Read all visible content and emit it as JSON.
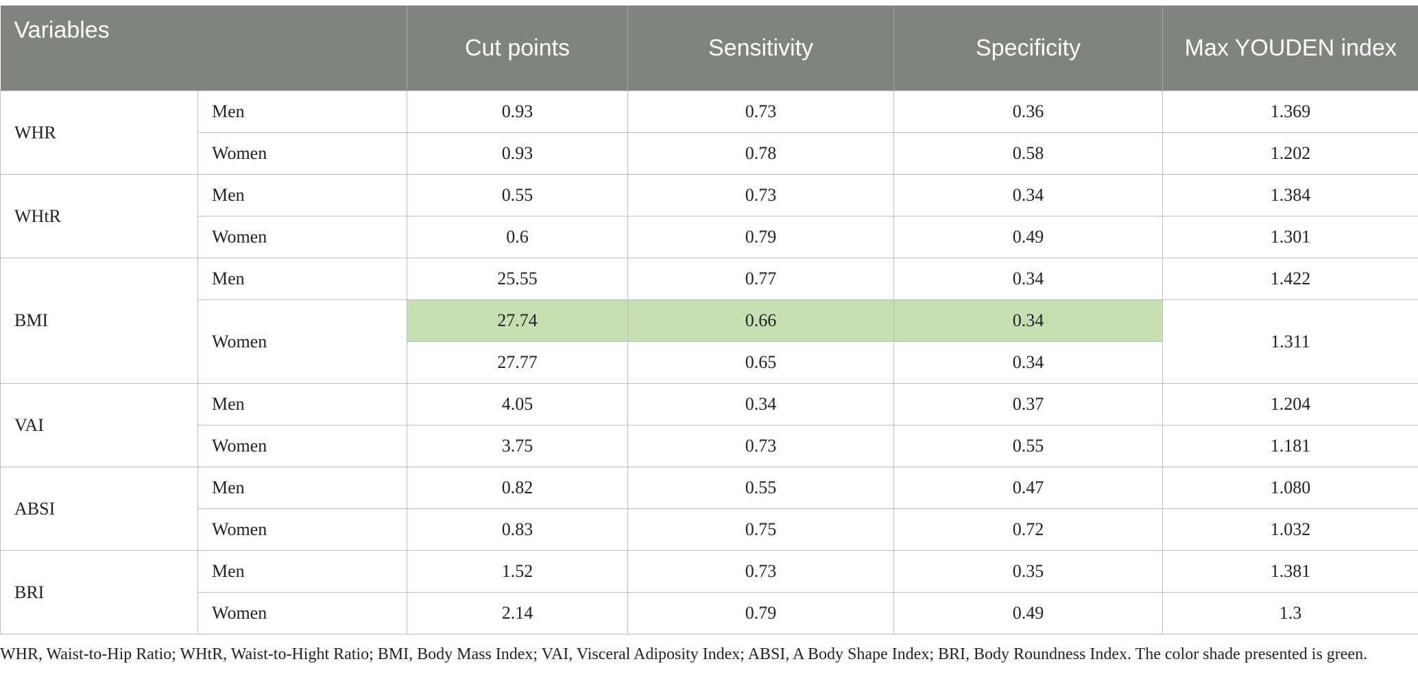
{
  "headers": {
    "variables": "Variables",
    "cut_points": "Cut points",
    "sensitivity": "Sensitivity",
    "specificity": "Specificity",
    "max_youden": "Max YOUDEN index"
  },
  "groups": [
    {
      "name": "WHR",
      "rows": [
        {
          "sex": "Men",
          "cut": "0.93",
          "sens": "0.73",
          "spec": "0.36",
          "youden": "1.369"
        },
        {
          "sex": "Women",
          "cut": "0.93",
          "sens": "0.78",
          "spec": "0.58",
          "youden": "1.202"
        }
      ]
    },
    {
      "name": "WHtR",
      "rows": [
        {
          "sex": "Men",
          "cut": "0.55",
          "sens": "0.73",
          "spec": "0.34",
          "youden": "1.384"
        },
        {
          "sex": "Women",
          "cut": "0.6",
          "sens": "0.79",
          "spec": "0.49",
          "youden": "1.301"
        }
      ]
    },
    {
      "name": "BMI",
      "rows": [
        {
          "sex": "Men",
          "cut": "25.55",
          "sens": "0.77",
          "spec": "0.34",
          "youden": "1.422"
        },
        {
          "sex": "Women",
          "cut": "27.74",
          "sens": "0.66",
          "spec": "0.34",
          "youden": "1.311",
          "highlight": true
        },
        {
          "cut": "27.77",
          "sens": "0.65",
          "spec": "0.34"
        }
      ]
    },
    {
      "name": "VAI",
      "rows": [
        {
          "sex": "Men",
          "cut": "4.05",
          "sens": "0.34",
          "spec": "0.37",
          "youden": "1.204"
        },
        {
          "sex": "Women",
          "cut": "3.75",
          "sens": "0.73",
          "spec": "0.55",
          "youden": "1.181"
        }
      ]
    },
    {
      "name": "ABSI",
      "rows": [
        {
          "sex": "Men",
          "cut": "0.82",
          "sens": "0.55",
          "spec": "0.47",
          "youden": "1.080"
        },
        {
          "sex": "Women",
          "cut": "0.83",
          "sens": "0.75",
          "spec": "0.72",
          "youden": "1.032"
        }
      ]
    },
    {
      "name": "BRI",
      "rows": [
        {
          "sex": "Men",
          "cut": "1.52",
          "sens": "0.73",
          "spec": "0.35",
          "youden": "1.381"
        },
        {
          "sex": "Women",
          "cut": "2.14",
          "sens": "0.79",
          "spec": "0.49",
          "youden": "1.3"
        }
      ]
    }
  ],
  "footnote": "WHR, Waist-to-Hip Ratio; WHtR, Waist-to-Hight Ratio; BMI, Body Mass Index; VAI, Visceral Adiposity Index; ABSI, A Body Shape Index; BRI, Body Roundness Index. The color shade presented is green.",
  "colors": {
    "header_bg": "#808380",
    "highlight": "#c6e0b4",
    "border": "#bdbdbd"
  }
}
